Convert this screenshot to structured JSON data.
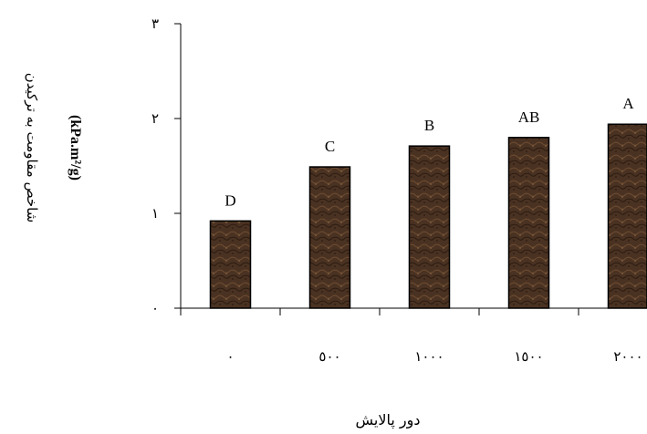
{
  "chart_data": {
    "type": "bar",
    "categories": [
      "٠",
      "٥٠٠",
      "١٠٠٠",
      "١٥٠٠",
      "٢٠٠٠"
    ],
    "values": [
      0.92,
      1.49,
      1.71,
      1.8,
      1.94
    ],
    "group_letters": [
      "D",
      "C",
      "B",
      "AB",
      "A"
    ],
    "ylim": [
      0,
      3
    ],
    "yticks": [
      0,
      1,
      2,
      3
    ],
    "ytick_labels": [
      "٠",
      "١",
      "٢",
      "٣"
    ],
    "xlabel": "دور پالایش",
    "ylabel": "شاخص مقاومت به ترکیدن",
    "ylabel_unit": "(kPa.m²/g)",
    "grid": false,
    "legend": "none",
    "bar_fill": "#4a3222",
    "bar_stroke": "#000000"
  }
}
